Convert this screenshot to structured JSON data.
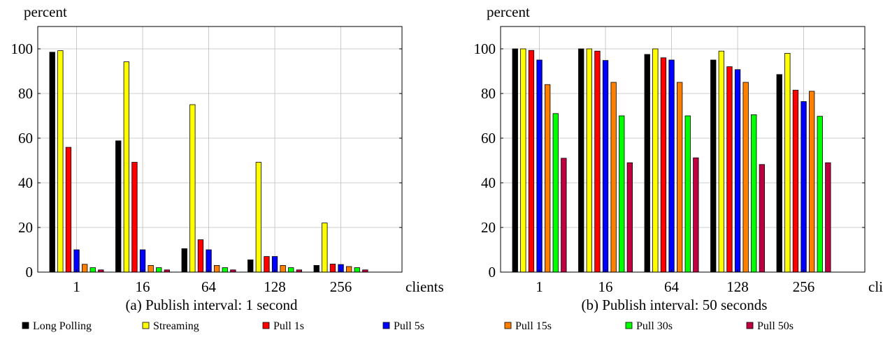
{
  "chart_data": [
    {
      "type": "bar",
      "title": "(a) Publish interval: 1 second",
      "xlabel": "clients",
      "ylabel": "percent",
      "categories": [
        "1",
        "16",
        "64",
        "128",
        "256"
      ],
      "ylim": [
        0,
        110
      ],
      "yticks": [
        0,
        20,
        40,
        60,
        80,
        100
      ],
      "grid": true,
      "series": [
        {
          "name": "Long Polling",
          "values": [
            98.5,
            58.8,
            10.5,
            5.5,
            3.0
          ]
        },
        {
          "name": "Streaming",
          "values": [
            99.2,
            94.2,
            75.0,
            49.2,
            22.0
          ]
        },
        {
          "name": "Pull 1s",
          "values": [
            55.9,
            49.2,
            14.5,
            7.0,
            3.6
          ]
        },
        {
          "name": "Pull 5s",
          "values": [
            10.0,
            10.0,
            10.0,
            7.0,
            3.4
          ]
        },
        {
          "name": "Pull 15s",
          "values": [
            3.5,
            3.0,
            3.0,
            3.0,
            2.5
          ]
        },
        {
          "name": "Pull 30s",
          "values": [
            2.0,
            2.0,
            2.0,
            2.0,
            2.0
          ]
        },
        {
          "name": "Pull 50s",
          "values": [
            1.0,
            1.0,
            1.0,
            1.0,
            1.0
          ]
        }
      ]
    },
    {
      "type": "bar",
      "title": "(b) Publish interval: 50 seconds",
      "xlabel": "clients",
      "ylabel": "percent",
      "categories": [
        "1",
        "16",
        "64",
        "128",
        "256"
      ],
      "ylim": [
        0,
        110
      ],
      "yticks": [
        0,
        20,
        40,
        60,
        80,
        100
      ],
      "grid": true,
      "series": [
        {
          "name": "Long Polling",
          "values": [
            100.0,
            100.0,
            97.5,
            95.0,
            88.5
          ]
        },
        {
          "name": "Streaming",
          "values": [
            100.0,
            100.0,
            100.0,
            99.0,
            98.0
          ]
        },
        {
          "name": "Pull 1s",
          "values": [
            99.3,
            99.0,
            96.0,
            92.0,
            81.5
          ]
        },
        {
          "name": "Pull 5s",
          "values": [
            95.0,
            94.8,
            95.0,
            90.7,
            76.4
          ]
        },
        {
          "name": "Pull 15s",
          "values": [
            84.0,
            85.0,
            85.0,
            85.0,
            81.0
          ]
        },
        {
          "name": "Pull 30s",
          "values": [
            71.0,
            70.0,
            70.0,
            70.5,
            69.8
          ]
        },
        {
          "name": "Pull 50s",
          "values": [
            51.0,
            49.0,
            51.2,
            48.2,
            49.0
          ]
        }
      ]
    }
  ],
  "legend": {
    "placement": "bottom",
    "items": [
      {
        "label": "Long Polling",
        "color": "#000000"
      },
      {
        "label": "Streaming",
        "color": "#ffff00"
      },
      {
        "label": "Pull 1s",
        "color": "#ff0000"
      },
      {
        "label": "Pull 5s",
        "color": "#0000ff"
      },
      {
        "label": "Pull 15s",
        "color": "#ff8000"
      },
      {
        "label": "Pull 30s",
        "color": "#00ff00"
      },
      {
        "label": "Pull 50s",
        "color": "#bf0040"
      }
    ]
  }
}
